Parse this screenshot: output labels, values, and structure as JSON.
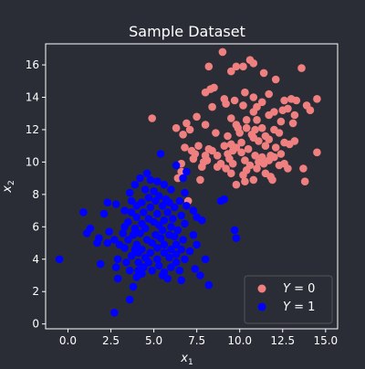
{
  "chart_data": {
    "type": "scatter",
    "title": "Sample Dataset",
    "xlabel_base": "x",
    "xlabel_sub": "1",
    "ylabel_base": "x",
    "ylabel_sub": "2",
    "xlim": [
      -1.3,
      15.7
    ],
    "ylim": [
      -0.3,
      17.3
    ],
    "xticks": [
      0.0,
      2.5,
      5.0,
      7.5,
      10.0,
      12.5,
      15.0
    ],
    "xtick_labels": [
      "0.0",
      "2.5",
      "5.0",
      "7.5",
      "10.0",
      "12.5",
      "15.0"
    ],
    "yticks": [
      0,
      2,
      4,
      6,
      8,
      10,
      12,
      14,
      16
    ],
    "ytick_labels": [
      "0",
      "2",
      "4",
      "6",
      "8",
      "10",
      "12",
      "14",
      "16"
    ],
    "grid": false,
    "legend": {
      "placement": "bottom-right",
      "entries": [
        {
          "var": "Y",
          "eq": " = 0",
          "color": "#f08080"
        },
        {
          "var": "Y",
          "eq": " = 1",
          "color": "#0000ff"
        }
      ]
    },
    "colors": {
      "background": "#2b2d36",
      "axes_bg": "#2b2d36",
      "text": "#ffffff",
      "legend_bg": "#2b2d36",
      "legend_border": "#555555"
    },
    "series": [
      {
        "color": "#f08080",
        "points": [
          [
            9.0,
            16.8
          ],
          [
            10.8,
            16.1
          ],
          [
            10.6,
            16.3
          ],
          [
            9.8,
            15.9
          ],
          [
            10.2,
            15.9
          ],
          [
            9.5,
            15.6
          ],
          [
            8.2,
            15.9
          ],
          [
            11.4,
            15.5
          ],
          [
            13.6,
            15.8
          ],
          [
            12.1,
            15.1
          ],
          [
            8.3,
            14.5
          ],
          [
            8.5,
            14.6
          ],
          [
            8.0,
            14.3
          ],
          [
            10.3,
            14.3
          ],
          [
            11.7,
            14.2
          ],
          [
            9.1,
            13.9
          ],
          [
            9.7,
            13.8
          ],
          [
            10.8,
            14.0
          ],
          [
            11.3,
            13.7
          ],
          [
            12.6,
            13.8
          ],
          [
            13.0,
            13.9
          ],
          [
            13.3,
            13.8
          ],
          [
            14.5,
            13.9
          ],
          [
            8.4,
            13.4
          ],
          [
            9.2,
            13.6
          ],
          [
            10.2,
            13.5
          ],
          [
            11.0,
            13.4
          ],
          [
            12.8,
            13.3
          ],
          [
            13.9,
            13.5
          ],
          [
            14.1,
            13.2
          ],
          [
            10.8,
            13.1
          ],
          [
            11.7,
            12.9
          ],
          [
            12.0,
            13.1
          ],
          [
            12.5,
            13.2
          ],
          [
            13.2,
            12.9
          ],
          [
            4.9,
            12.7
          ],
          [
            7.5,
            12.8
          ],
          [
            9.5,
            12.7
          ],
          [
            10.4,
            12.6
          ],
          [
            11.0,
            12.6
          ],
          [
            12.4,
            12.5
          ],
          [
            13.1,
            12.4
          ],
          [
            6.9,
            12.4
          ],
          [
            8.0,
            12.3
          ],
          [
            9.8,
            12.3
          ],
          [
            6.3,
            12.1
          ],
          [
            7.1,
            12.0
          ],
          [
            9.9,
            12.1
          ],
          [
            10.4,
            12.1
          ],
          [
            10.9,
            12.0
          ],
          [
            11.3,
            12.1
          ],
          [
            12.0,
            12.0
          ],
          [
            6.7,
            11.7
          ],
          [
            8.6,
            11.8
          ],
          [
            9.3,
            11.6
          ],
          [
            10.0,
            11.8
          ],
          [
            10.7,
            11.7
          ],
          [
            11.5,
            11.6
          ],
          [
            12.3,
            11.8
          ],
          [
            10.8,
            11.5
          ],
          [
            11.1,
            11.3
          ],
          [
            11.7,
            11.4
          ],
          [
            9.5,
            11.1
          ],
          [
            10.1,
            11.2
          ],
          [
            12.9,
            11.1
          ],
          [
            13.2,
            11.3
          ],
          [
            6.8,
            10.9
          ],
          [
            7.6,
            11.0
          ],
          [
            8.2,
            10.8
          ],
          [
            9.1,
            11.0
          ],
          [
            9.8,
            10.9
          ],
          [
            10.5,
            10.8
          ],
          [
            11.5,
            11.0
          ],
          [
            12.1,
            10.9
          ],
          [
            12.6,
            11.2
          ],
          [
            7.2,
            10.7
          ],
          [
            8.4,
            10.7
          ],
          [
            9.6,
            10.7
          ],
          [
            14.5,
            10.6
          ],
          [
            7.4,
            10.5
          ],
          [
            8.0,
            10.4
          ],
          [
            8.7,
            10.4
          ],
          [
            9.3,
            10.5
          ],
          [
            10.1,
            10.6
          ],
          [
            10.9,
            10.4
          ],
          [
            11.3,
            10.3
          ],
          [
            11.8,
            10.4
          ],
          [
            12.4,
            10.5
          ],
          [
            7.3,
            10.2
          ],
          [
            8.1,
            10.1
          ],
          [
            9.4,
            10.2
          ],
          [
            10.3,
            10.1
          ],
          [
            11.1,
            10.0
          ],
          [
            11.7,
            10.1
          ],
          [
            12.0,
            10.3
          ],
          [
            7.9,
            10.0
          ],
          [
            8.9,
            9.9
          ],
          [
            9.6,
            9.9
          ],
          [
            10.6,
            9.8
          ],
          [
            11.4,
            9.9
          ],
          [
            12.3,
            9.8
          ],
          [
            12.6,
            9.9
          ],
          [
            6.6,
            9.9
          ],
          [
            7.8,
            9.7
          ],
          [
            8.7,
            9.7
          ],
          [
            9.2,
            9.6
          ],
          [
            10.4,
            9.5
          ],
          [
            11.0,
            9.6
          ],
          [
            12.8,
            9.6
          ],
          [
            13.7,
            9.6
          ],
          [
            6.6,
            9.4
          ],
          [
            9.5,
            9.3
          ],
          [
            10.2,
            9.2
          ],
          [
            11.5,
            9.3
          ],
          [
            11.8,
            9.1
          ],
          [
            6.4,
            9.0
          ],
          [
            7.7,
            8.9
          ],
          [
            10.8,
            8.9
          ],
          [
            11.9,
            8.9
          ],
          [
            13.8,
            8.8
          ],
          [
            9.8,
            8.6
          ],
          [
            10.3,
            8.8
          ],
          [
            7.0,
            7.6
          ]
        ]
      },
      {
        "color": "#0000ff",
        "points": [
          [
            5.4,
            10.5
          ],
          [
            6.3,
            9.8
          ],
          [
            4.6,
            9.3
          ],
          [
            4.2,
            9.0
          ],
          [
            4.8,
            8.9
          ],
          [
            6.9,
            9.4
          ],
          [
            6.7,
            9.0
          ],
          [
            5.2,
            8.8
          ],
          [
            5.6,
            8.6
          ],
          [
            3.9,
            8.6
          ],
          [
            4.5,
            8.3
          ],
          [
            5.0,
            8.2
          ],
          [
            3.6,
            8.1
          ],
          [
            6.0,
            8.3
          ],
          [
            6.8,
            8.1
          ],
          [
            5.3,
            7.9
          ],
          [
            4.7,
            7.8
          ],
          [
            5.7,
            7.7
          ],
          [
            3.7,
            7.6
          ],
          [
            4.3,
            7.5
          ],
          [
            5.1,
            7.6
          ],
          [
            5.9,
            7.5
          ],
          [
            6.5,
            7.6
          ],
          [
            6.9,
            7.3
          ],
          [
            2.3,
            7.5
          ],
          [
            2.8,
            7.4
          ],
          [
            9.1,
            7.7
          ],
          [
            8.9,
            7.6
          ],
          [
            4.0,
            7.3
          ],
          [
            4.8,
            7.2
          ],
          [
            5.5,
            7.3
          ],
          [
            6.2,
            7.2
          ],
          [
            3.3,
            7.0
          ],
          [
            3.7,
            6.9
          ],
          [
            4.4,
            6.9
          ],
          [
            5.2,
            6.8
          ],
          [
            5.8,
            6.9
          ],
          [
            6.6,
            6.7
          ],
          [
            7.3,
            7.0
          ],
          [
            0.9,
            6.9
          ],
          [
            2.1,
            6.8
          ],
          [
            4.0,
            6.6
          ],
          [
            4.7,
            6.5
          ],
          [
            5.6,
            6.4
          ],
          [
            6.1,
            6.5
          ],
          [
            7.5,
            6.6
          ],
          [
            7.8,
            6.4
          ],
          [
            3.5,
            6.3
          ],
          [
            4.3,
            6.2
          ],
          [
            5.0,
            6.3
          ],
          [
            5.3,
            6.1
          ],
          [
            6.0,
            6.0
          ],
          [
            6.8,
            6.2
          ],
          [
            3.3,
            6.0
          ],
          [
            3.9,
            5.9
          ],
          [
            4.5,
            5.9
          ],
          [
            5.5,
            5.8
          ],
          [
            6.4,
            5.8
          ],
          [
            1.3,
            5.9
          ],
          [
            1.1,
            5.6
          ],
          [
            2.4,
            5.7
          ],
          [
            3.2,
            5.6
          ],
          [
            3.8,
            5.5
          ],
          [
            4.2,
            5.6
          ],
          [
            5.1,
            5.5
          ],
          [
            5.9,
            5.5
          ],
          [
            6.2,
            5.4
          ],
          [
            7.3,
            5.5
          ],
          [
            9.7,
            5.8
          ],
          [
            1.8,
            5.3
          ],
          [
            2.7,
            5.2
          ],
          [
            3.5,
            5.2
          ],
          [
            4.6,
            5.2
          ],
          [
            5.4,
            5.3
          ],
          [
            6.7,
            5.2
          ],
          [
            9.8,
            5.3
          ],
          [
            1.7,
            5.0
          ],
          [
            2.3,
            5.0
          ],
          [
            3.0,
            4.9
          ],
          [
            4.0,
            4.9
          ],
          [
            4.9,
            5.0
          ],
          [
            5.6,
            4.9
          ],
          [
            6.3,
            4.9
          ],
          [
            7.5,
            4.9
          ],
          [
            3.3,
            4.7
          ],
          [
            3.9,
            4.6
          ],
          [
            4.3,
            4.6
          ],
          [
            5.2,
            4.7
          ],
          [
            6.0,
            4.6
          ],
          [
            6.6,
            4.6
          ],
          [
            4.1,
            4.4
          ],
          [
            4.8,
            4.4
          ],
          [
            5.6,
            4.4
          ],
          [
            6.3,
            4.3
          ],
          [
            7.1,
            4.5
          ],
          [
            -0.5,
            4.0
          ],
          [
            3.7,
            4.2
          ],
          [
            4.5,
            4.1
          ],
          [
            5.2,
            4.0
          ],
          [
            5.9,
            4.1
          ],
          [
            2.9,
            4.0
          ],
          [
            6.8,
            4.0
          ],
          [
            8.0,
            4.0
          ],
          [
            3.4,
            3.8
          ],
          [
            4.1,
            3.8
          ],
          [
            4.7,
            3.8
          ],
          [
            6.3,
            3.8
          ],
          [
            1.9,
            3.7
          ],
          [
            2.8,
            3.5
          ],
          [
            4.4,
            3.5
          ],
          [
            5.3,
            3.6
          ],
          [
            6.0,
            3.5
          ],
          [
            3.6,
            3.3
          ],
          [
            4.1,
            3.3
          ],
          [
            4.9,
            3.3
          ],
          [
            5.6,
            3.2
          ],
          [
            6.5,
            3.3
          ],
          [
            7.4,
            3.4
          ],
          [
            4.3,
            3.1
          ],
          [
            5.5,
            3.0
          ],
          [
            7.7,
            3.0
          ],
          [
            2.9,
            2.8
          ],
          [
            4.0,
            2.9
          ],
          [
            5.8,
            2.8
          ],
          [
            6.6,
            2.7
          ],
          [
            8.2,
            2.4
          ],
          [
            3.8,
            2.3
          ],
          [
            3.6,
            1.5
          ],
          [
            2.7,
            0.7
          ]
        ]
      }
    ]
  }
}
